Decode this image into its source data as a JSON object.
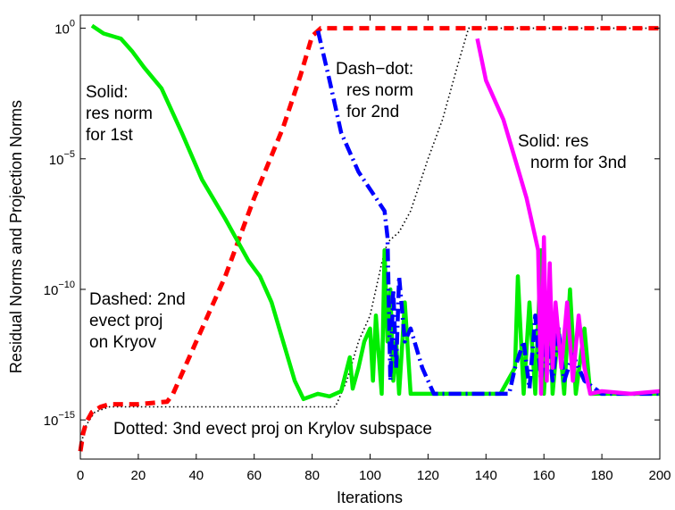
{
  "chart_data": {
    "type": "line",
    "title": "",
    "xlabel": "Iterations",
    "ylabel": "Residual Norms and Projection Norms",
    "xlim": [
      0,
      200
    ],
    "ylim_log10": [
      -16.5,
      0.5
    ],
    "yscale": "log",
    "grid": false,
    "x_ticks": [
      "0",
      "20",
      "40",
      "60",
      "80",
      "100",
      "120",
      "140",
      "160",
      "180",
      "200"
    ],
    "y_ticks": [
      {
        "base": "10",
        "exp": "0",
        "value": 0
      },
      {
        "base": "10",
        "exp": "−5",
        "value": -5
      },
      {
        "base": "10",
        "exp": "−10",
        "value": -10
      },
      {
        "base": "10",
        "exp": "−15",
        "value": -15
      }
    ],
    "annotations": [
      {
        "lines": [
          "Solid:",
          "res norm",
          "for 1st"
        ]
      },
      {
        "lines": [
          "Dash−dot:",
          "res norm",
          "for 2nd"
        ]
      },
      {
        "lines": [
          "Solid: res",
          "norm for 3nd"
        ]
      },
      {
        "lines": [
          "Dashed: 2nd",
          "evect proj",
          "on Kryov"
        ]
      },
      {
        "lines": [
          "Dotted: 3nd evect proj on Krylov subspace"
        ]
      }
    ],
    "series": [
      {
        "style": "dashed",
        "color": "#ff0000",
        "points": [
          [
            0,
            -16.2
          ],
          [
            1,
            -15.5
          ],
          [
            2,
            -15.1
          ],
          [
            4,
            -14.7
          ],
          [
            7,
            -14.5
          ],
          [
            10,
            -14.4
          ],
          [
            20,
            -14.4
          ],
          [
            30,
            -14.3
          ],
          [
            32,
            -14.0
          ],
          [
            40,
            -12.0
          ],
          [
            50,
            -9.5
          ],
          [
            60,
            -6.5
          ],
          [
            70,
            -3.8
          ],
          [
            76,
            -1.8
          ],
          [
            80,
            -0.3
          ],
          [
            83,
            0.0
          ],
          [
            90,
            0.0
          ],
          [
            200,
            0.0
          ]
        ]
      },
      {
        "style": "dotted",
        "color": "#000000",
        "points": [
          [
            0,
            -16.0
          ],
          [
            2,
            -15.2
          ],
          [
            5,
            -14.7
          ],
          [
            10,
            -14.5
          ],
          [
            20,
            -14.5
          ],
          [
            88,
            -14.5
          ],
          [
            92,
            -13.5
          ],
          [
            96,
            -12.0
          ],
          [
            100,
            -11.0
          ],
          [
            104,
            -9.0
          ],
          [
            106,
            -8.2
          ],
          [
            110,
            -7.8
          ],
          [
            114,
            -7.0
          ],
          [
            120,
            -5.0
          ],
          [
            125,
            -3.5
          ],
          [
            130,
            -1.5
          ],
          [
            134,
            0.0
          ],
          [
            200,
            0.0
          ]
        ]
      },
      {
        "style": "solid",
        "color": "#00ee00",
        "points": [
          [
            4,
            0.1
          ],
          [
            8,
            -0.2
          ],
          [
            14,
            -0.4
          ],
          [
            18,
            -0.9
          ],
          [
            22,
            -1.5
          ],
          [
            28,
            -2.3
          ],
          [
            35,
            -4.0
          ],
          [
            42,
            -5.8
          ],
          [
            50,
            -7.3
          ],
          [
            58,
            -8.9
          ],
          [
            62,
            -9.5
          ],
          [
            66,
            -10.5
          ],
          [
            70,
            -12.0
          ],
          [
            74,
            -13.5
          ],
          [
            77,
            -14.2
          ],
          [
            82,
            -14.0
          ],
          [
            86,
            -14.1
          ],
          [
            90,
            -13.9
          ],
          [
            93,
            -12.6
          ],
          [
            94,
            -13.8
          ],
          [
            96,
            -13.0
          ],
          [
            98,
            -12.0
          ],
          [
            100,
            -11.5
          ],
          [
            101,
            -13.5
          ],
          [
            102,
            -11.0
          ],
          [
            103,
            -12.5
          ],
          [
            104,
            -14.0
          ],
          [
            105,
            -8.5
          ],
          [
            106,
            -12.0
          ],
          [
            107,
            -10.0
          ],
          [
            108,
            -13.5
          ],
          [
            109,
            -12.0
          ],
          [
            110,
            -14.0
          ],
          [
            112,
            -10.5
          ],
          [
            114,
            -14.0
          ],
          [
            116,
            -14.0
          ],
          [
            125,
            -14.0
          ],
          [
            135,
            -14.0
          ],
          [
            145,
            -14.0
          ],
          [
            150,
            -13.0
          ],
          [
            151,
            -9.5
          ],
          [
            153,
            -14.0
          ],
          [
            155,
            -10.5
          ],
          [
            157,
            -14.0
          ],
          [
            159,
            -8.5
          ],
          [
            160,
            -14.0
          ],
          [
            162,
            -10.0
          ],
          [
            163,
            -14.0
          ],
          [
            165,
            -11.5
          ],
          [
            167,
            -14.0
          ],
          [
            169,
            -10.0
          ],
          [
            171,
            -14.0
          ],
          [
            174,
            -11.5
          ],
          [
            176,
            -14.0
          ],
          [
            180,
            -14.0
          ],
          [
            200,
            -14.0
          ]
        ]
      },
      {
        "style": "dashdot",
        "color": "#0000ff",
        "points": [
          [
            82,
            -0.1
          ],
          [
            86,
            -2.0
          ],
          [
            90,
            -4.0
          ],
          [
            96,
            -5.5
          ],
          [
            102,
            -6.5
          ],
          [
            105,
            -7.0
          ],
          [
            106,
            -8.0
          ],
          [
            107,
            -13.5
          ],
          [
            108,
            -10.0
          ],
          [
            109,
            -13.0
          ],
          [
            110,
            -9.5
          ],
          [
            112,
            -12.0
          ],
          [
            114,
            -11.5
          ],
          [
            118,
            -13.0
          ],
          [
            122,
            -14.0
          ],
          [
            140,
            -14.0
          ],
          [
            148,
            -14.0
          ],
          [
            150,
            -13.0
          ],
          [
            153,
            -12.0
          ],
          [
            155,
            -13.8
          ],
          [
            157,
            -11.0
          ],
          [
            159,
            -13.5
          ],
          [
            161,
            -11.5
          ],
          [
            163,
            -13.5
          ],
          [
            165,
            -11.5
          ],
          [
            167,
            -13.5
          ],
          [
            170,
            -12.5
          ],
          [
            174,
            -13.5
          ],
          [
            180,
            -14.0
          ],
          [
            200,
            -14.0
          ]
        ]
      },
      {
        "style": "solid",
        "color": "#ff00ff",
        "points": [
          [
            137,
            -0.4
          ],
          [
            140,
            -2.0
          ],
          [
            146,
            -3.5
          ],
          [
            150,
            -5.0
          ],
          [
            154,
            -6.5
          ],
          [
            157,
            -8.0
          ],
          [
            158,
            -8.5
          ],
          [
            159,
            -14.0
          ],
          [
            160,
            -8.0
          ],
          [
            161,
            -13.5
          ],
          [
            162,
            -9.0
          ],
          [
            163,
            -13.0
          ],
          [
            164,
            -10.5
          ],
          [
            166,
            -13.0
          ],
          [
            168,
            -10.5
          ],
          [
            170,
            -13.5
          ],
          [
            172,
            -11.0
          ],
          [
            174,
            -13.0
          ],
          [
            176,
            -14.0
          ],
          [
            180,
            -13.9
          ],
          [
            190,
            -14.0
          ],
          [
            200,
            -13.9
          ]
        ]
      }
    ]
  }
}
